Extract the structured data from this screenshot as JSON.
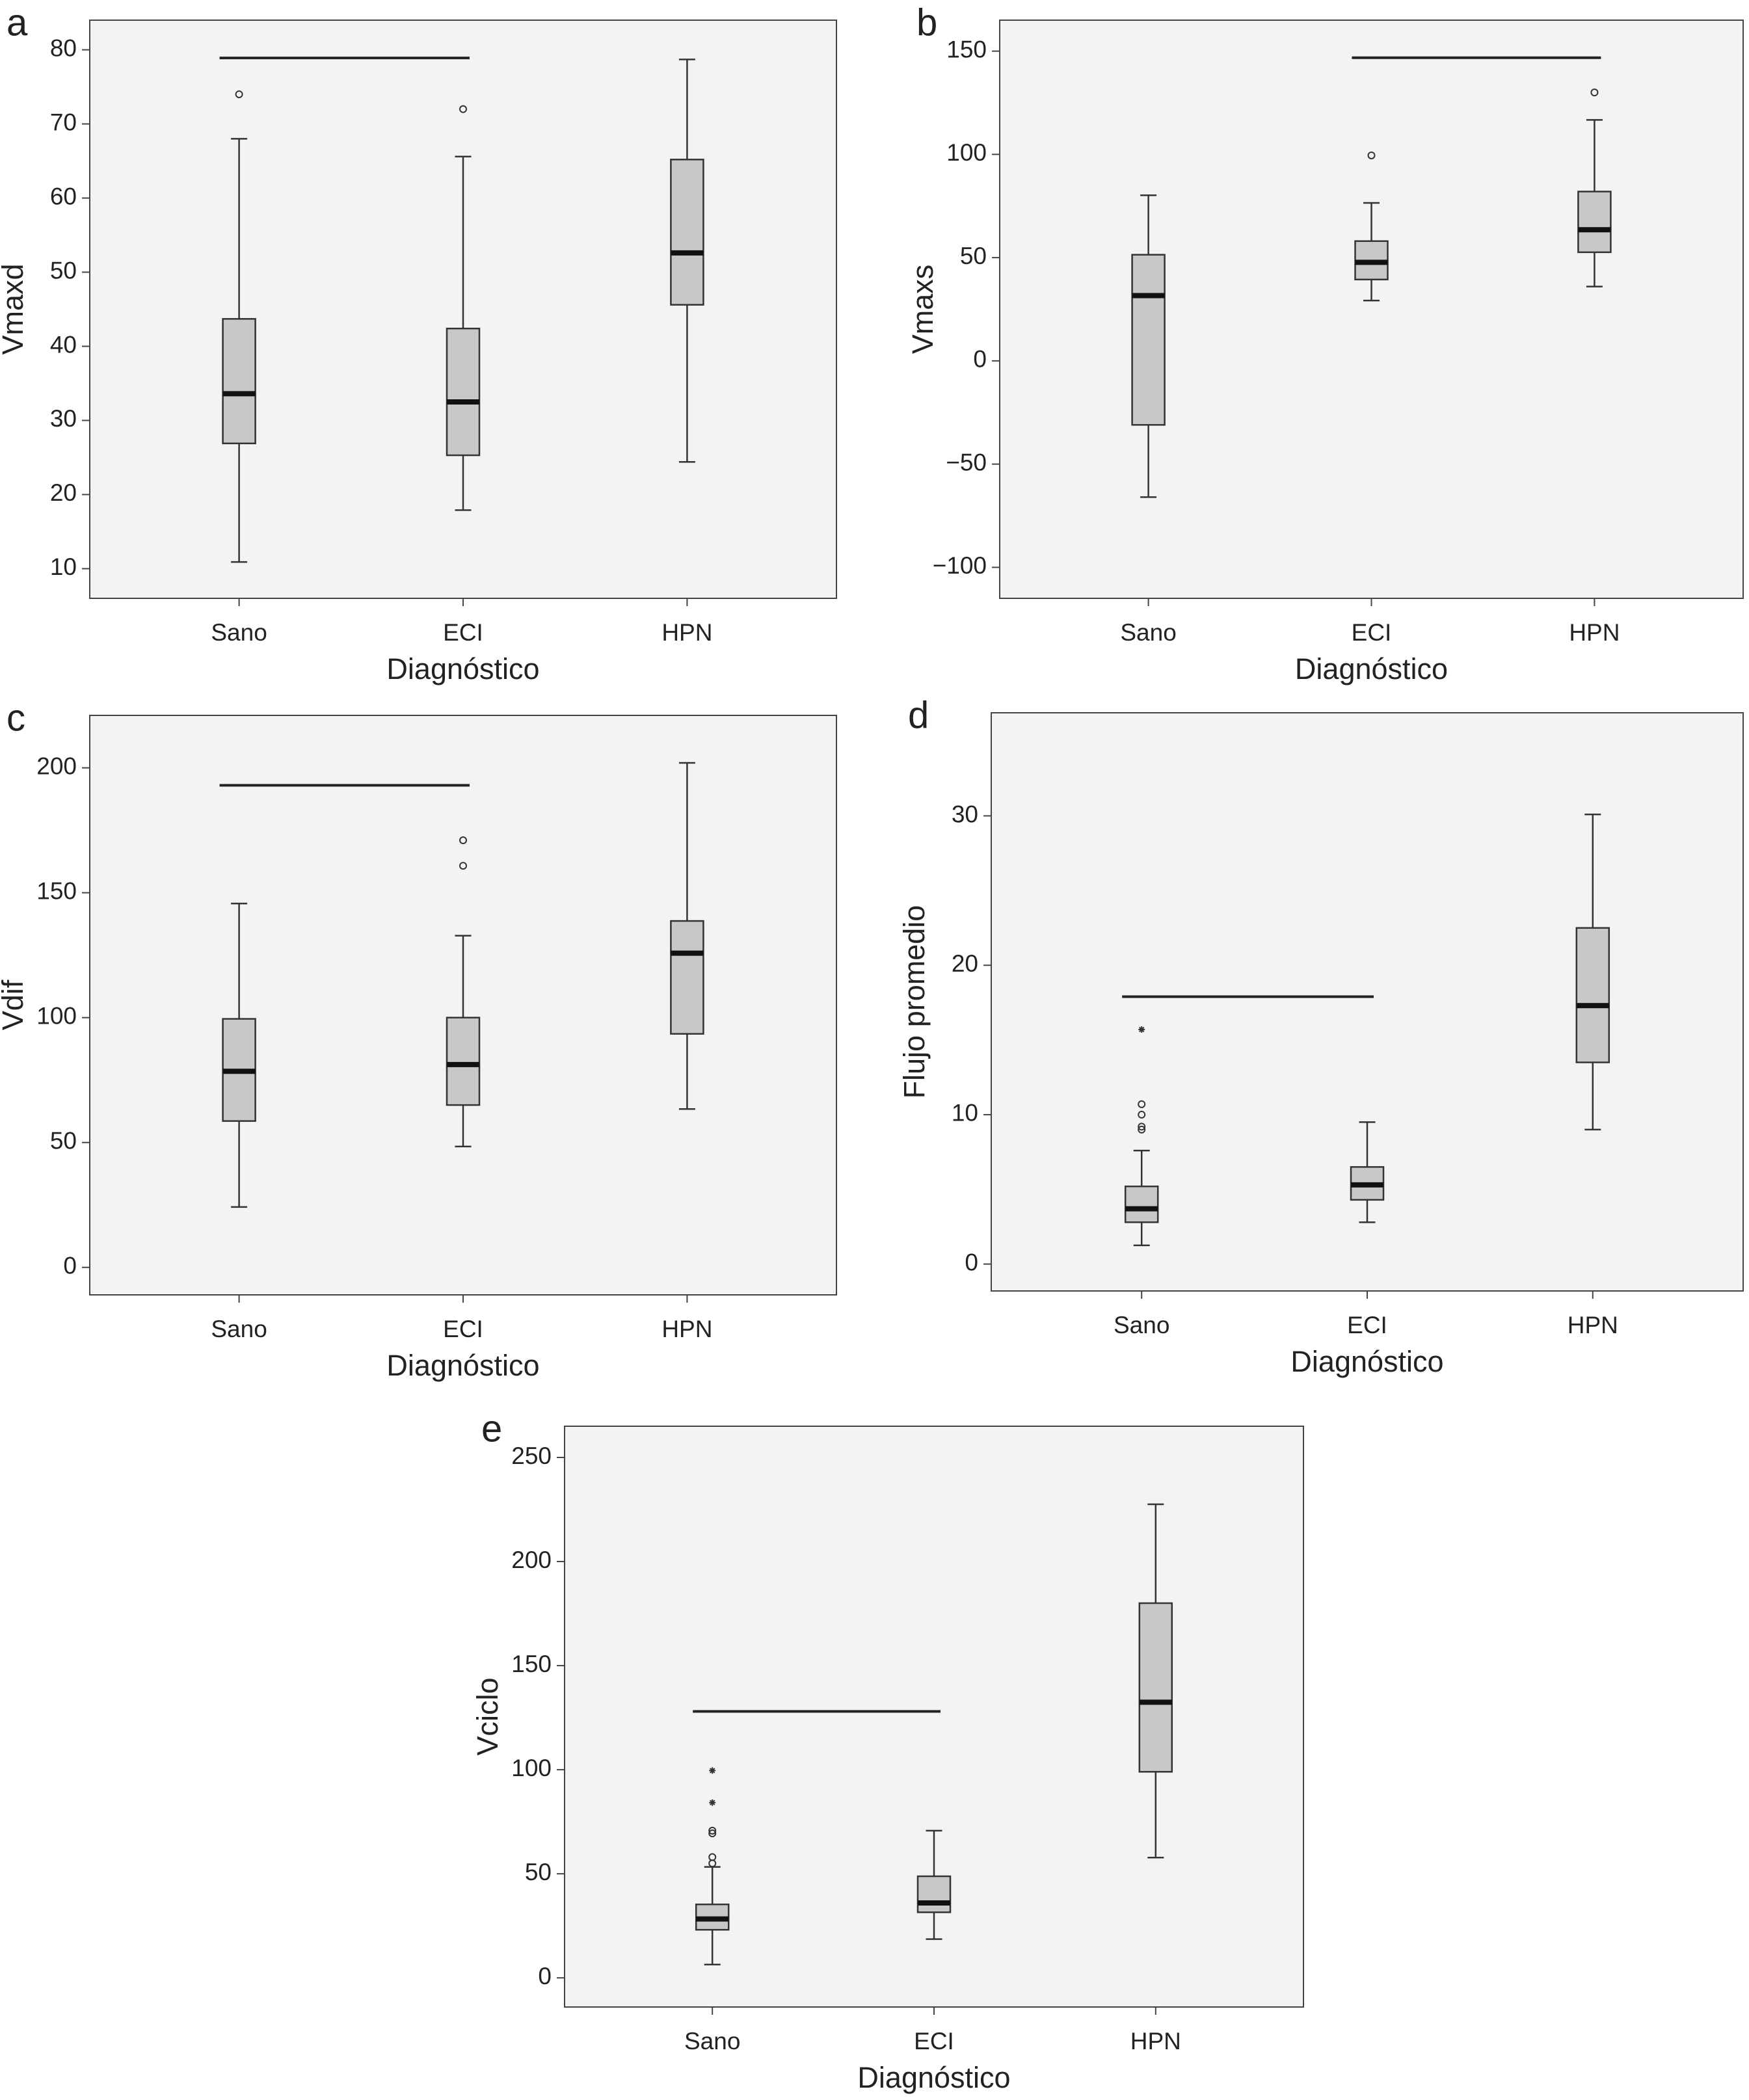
{
  "chart_data": [
    {
      "type": "box",
      "panel": "a",
      "ylabel": "Vmaxd",
      "xlabel": "Diagnóstico",
      "categories": [
        "Sano",
        "ECI",
        "HPN"
      ],
      "whisker_low": [
        10.9,
        17.9,
        24.4
      ],
      "q1": [
        26.9,
        25.3,
        45.6
      ],
      "median": [
        33.6,
        32.5,
        52.6
      ],
      "q3": [
        43.7,
        42.4,
        65.2
      ],
      "whisker_high": [
        68,
        65.6,
        78.7
      ],
      "outliers": [
        [
          74
        ],
        [
          72
        ],
        []
      ],
      "extremes": [
        [],
        [],
        []
      ],
      "bracket": {
        "y": 78.9,
        "categories": [
          "Sano",
          "ECI"
        ]
      },
      "ylim": [
        6,
        84
      ],
      "yticks": [
        10,
        20,
        30,
        40,
        50,
        60,
        70,
        80
      ],
      "background": "#f2f3f2",
      "box_color": "#c8c8c8"
    },
    {
      "type": "box",
      "panel": "b",
      "ylabel": "Vmaxs",
      "xlabel": "Diagnóstico",
      "categories": [
        "Sano",
        "ECI",
        "HPN"
      ],
      "whisker_low": [
        -66,
        29.2,
        36
      ],
      "q1": [
        -31,
        39.4,
        52.6
      ],
      "median": [
        31.6,
        47.7,
        63.5
      ],
      "q3": [
        51.4,
        58,
        82
      ],
      "whisker_high": [
        80.2,
        76.5,
        116.7
      ],
      "outliers": [
        [],
        [
          99.5
        ],
        [
          130
        ]
      ],
      "extremes": [
        [],
        [],
        []
      ],
      "bracket": {
        "y": 146.8,
        "categories": [
          "ECI",
          "HPN"
        ]
      },
      "ylim": [
        -115,
        165
      ],
      "yticks": [
        {
          "value": -100,
          "label": "−100"
        },
        {
          "value": -50,
          "label": "−50"
        },
        0,
        50,
        100,
        150
      ],
      "background": "#f2f3f2",
      "box_color": "#c8c8c8"
    },
    {
      "type": "box",
      "panel": "c",
      "ylabel": "Vdif",
      "xlabel": "Diagnóstico",
      "categories": [
        "Sano",
        "ECI",
        "HPN"
      ],
      "whisker_low": [
        24.2,
        48.4,
        63.4
      ],
      "q1": [
        58.6,
        65,
        93.5
      ],
      "median": [
        78.5,
        81.2,
        125.8
      ],
      "q3": [
        99.5,
        100,
        138.7
      ],
      "whisker_high": [
        145.7,
        132.8,
        202
      ],
      "outliers": [
        [],
        [
          160.8,
          171
        ],
        []
      ],
      "extremes": [
        [],
        [],
        []
      ],
      "bracket": {
        "y": 193,
        "categories": [
          "Sano",
          "ECI"
        ]
      },
      "ylim": [
        -11,
        221
      ],
      "yticks": [
        0,
        50,
        100,
        150,
        200
      ],
      "background": "#f2f3f2",
      "box_color": "#c8c8c8"
    },
    {
      "type": "box",
      "panel": "d",
      "ylabel": "Flujo promedio",
      "xlabel": "Diagnóstico",
      "categories": [
        "Sano",
        "ECI",
        "HPN"
      ],
      "whisker_low": [
        1.25,
        2.8,
        9
      ],
      "q1": [
        2.8,
        4.3,
        13.5
      ],
      "median": [
        3.7,
        5.3,
        17.3
      ],
      "q3": [
        5.2,
        6.5,
        22.5
      ],
      "whisker_high": [
        7.6,
        9.5,
        30.1
      ],
      "outliers": [
        [
          9,
          9.2,
          10,
          10.7
        ],
        [],
        []
      ],
      "extremes": [
        [
          15.7
        ],
        [],
        []
      ],
      "bracket": {
        "y": 17.9,
        "categories": [
          "Sano",
          "ECI"
        ]
      },
      "ylim": [
        -1.8,
        36.9
      ],
      "yticks": [
        0,
        10,
        20,
        30
      ],
      "background": "#f2f3f2",
      "box_color": "#c8c8c8"
    },
    {
      "type": "box",
      "panel": "e",
      "ylabel": "Vciclo",
      "xlabel": "Diagnóstico",
      "categories": [
        "Sano",
        "ECI",
        "HPN"
      ],
      "whisker_low": [
        6.4,
        18.6,
        57.8
      ],
      "q1": [
        23.1,
        31.5,
        99
      ],
      "median": [
        28.3,
        36,
        132.4
      ],
      "q3": [
        35.3,
        48.8,
        180
      ],
      "whisker_high": [
        53.3,
        70.7,
        227.5
      ],
      "outliers": [
        [
          55,
          58,
          69.4,
          70.7
        ],
        [],
        []
      ],
      "extremes": [
        [
          84.2,
          99.6
        ],
        [],
        []
      ],
      "bracket": {
        "y": 128,
        "categories": [
          "Sano",
          "ECI"
        ]
      },
      "ylim": [
        -14,
        265
      ],
      "yticks": [
        0,
        50,
        100,
        150,
        200,
        250
      ],
      "background": "#f2f3f2",
      "box_color": "#c8c8c8"
    }
  ]
}
